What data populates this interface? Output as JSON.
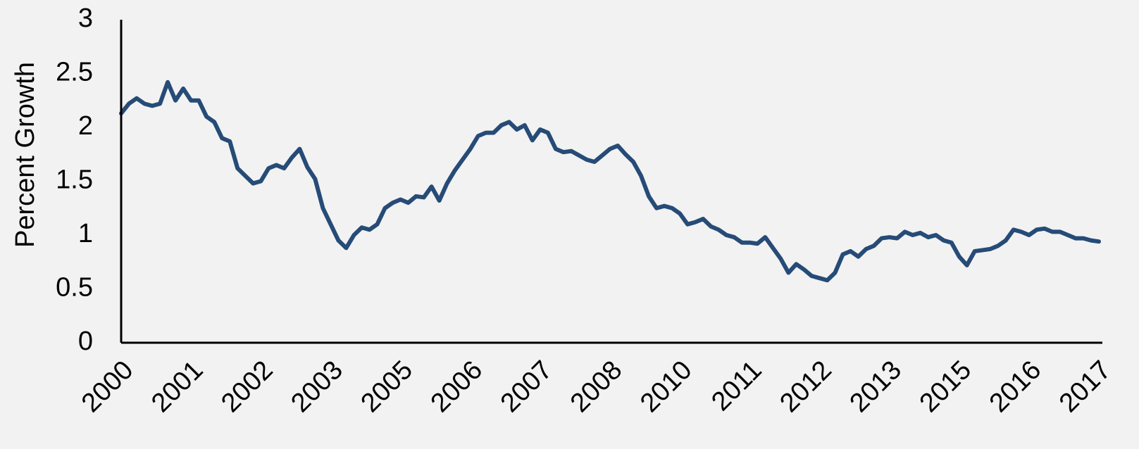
{
  "chart_data": {
    "type": "line",
    "y_label": "Percent Growth",
    "categories": [
      "2000",
      null,
      null,
      null,
      null,
      null,
      null,
      null,
      null,
      "2001",
      null,
      null,
      null,
      null,
      null,
      null,
      null,
      null,
      "2002",
      null,
      null,
      null,
      null,
      null,
      null,
      null,
      null,
      "2003",
      null,
      null,
      null,
      null,
      null,
      null,
      null,
      null,
      "2005",
      null,
      null,
      null,
      null,
      null,
      null,
      null,
      null,
      "2006",
      null,
      null,
      null,
      null,
      null,
      null,
      null,
      null,
      "2007",
      null,
      null,
      null,
      null,
      null,
      null,
      null,
      null,
      "2008",
      null,
      null,
      null,
      null,
      null,
      null,
      null,
      null,
      "2010",
      null,
      null,
      null,
      null,
      null,
      null,
      null,
      null,
      "2011",
      null,
      null,
      null,
      null,
      null,
      null,
      null,
      null,
      "2012",
      null,
      null,
      null,
      null,
      null,
      null,
      null,
      null,
      "2013",
      null,
      null,
      null,
      null,
      null,
      null,
      null,
      null,
      "2015",
      null,
      null,
      null,
      null,
      null,
      null,
      null,
      null,
      "2016",
      null,
      null,
      null,
      null,
      null,
      null,
      null,
      null,
      "2017"
    ],
    "series": [
      {
        "color": "#264b77",
        "values": [
          2.13,
          2.22,
          2.27,
          2.22,
          2.2,
          2.22,
          2.42,
          2.25,
          2.36,
          2.25,
          2.25,
          2.1,
          2.05,
          1.9,
          1.87,
          1.62,
          1.55,
          1.48,
          1.5,
          1.62,
          1.65,
          1.62,
          1.72,
          1.8,
          1.63,
          1.52,
          1.25,
          1.1,
          0.95,
          0.88,
          1.0,
          1.07,
          1.05,
          1.1,
          1.25,
          1.3,
          1.33,
          1.3,
          1.36,
          1.35,
          1.45,
          1.32,
          1.48,
          1.6,
          1.7,
          1.8,
          1.92,
          1.95,
          1.95,
          2.02,
          2.05,
          1.98,
          2.02,
          1.88,
          1.98,
          1.95,
          1.8,
          1.77,
          1.78,
          1.74,
          1.7,
          1.68,
          1.74,
          1.8,
          1.83,
          1.75,
          1.68,
          1.55,
          1.36,
          1.25,
          1.27,
          1.25,
          1.2,
          1.1,
          1.12,
          1.15,
          1.08,
          1.05,
          1.0,
          0.98,
          0.93,
          0.93,
          0.92,
          0.98,
          0.88,
          0.78,
          0.65,
          0.73,
          0.68,
          0.62,
          0.6,
          0.58,
          0.65,
          0.82,
          0.85,
          0.8,
          0.87,
          0.9,
          0.97,
          0.98,
          0.97,
          1.03,
          1.0,
          1.02,
          0.98,
          1.0,
          0.95,
          0.93,
          0.8,
          0.72,
          0.85,
          0.86,
          0.87,
          0.9,
          0.95,
          1.05,
          1.03,
          1.0,
          1.05,
          1.06,
          1.03,
          1.03,
          1.0,
          0.97,
          0.97,
          0.95,
          0.94
        ]
      }
    ],
    "ylim": [
      0,
      3
    ],
    "yticks": [
      0,
      0.5,
      1,
      1.5,
      2,
      2.5,
      3
    ],
    "grid": false
  }
}
